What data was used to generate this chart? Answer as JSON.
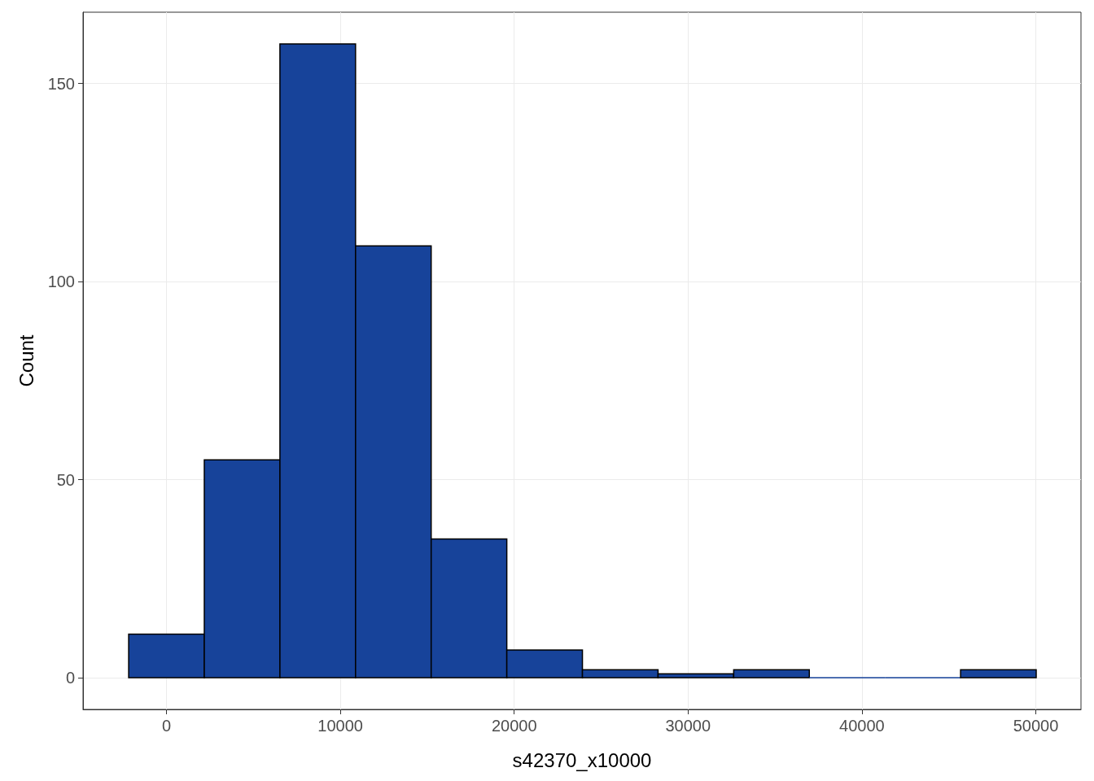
{
  "chart_data": {
    "type": "histogram",
    "xlabel": "s42370_x10000",
    "ylabel": "Count",
    "bins": [
      -2175,
      2175,
      6525,
      10875,
      15225,
      19575,
      23925,
      28275,
      32625,
      36975,
      41325,
      45675,
      50025
    ],
    "values": [
      11,
      55,
      160,
      109,
      35,
      7,
      2,
      1,
      2,
      0,
      0,
      2
    ],
    "color": "#17439a",
    "xlim": [
      -4800,
      52600
    ],
    "xticks": [
      0,
      10000,
      20000,
      30000,
      40000,
      50000
    ],
    "ylim": [
      -8,
      168
    ],
    "yticks": [
      0,
      50,
      100,
      150
    ],
    "grid": true
  }
}
